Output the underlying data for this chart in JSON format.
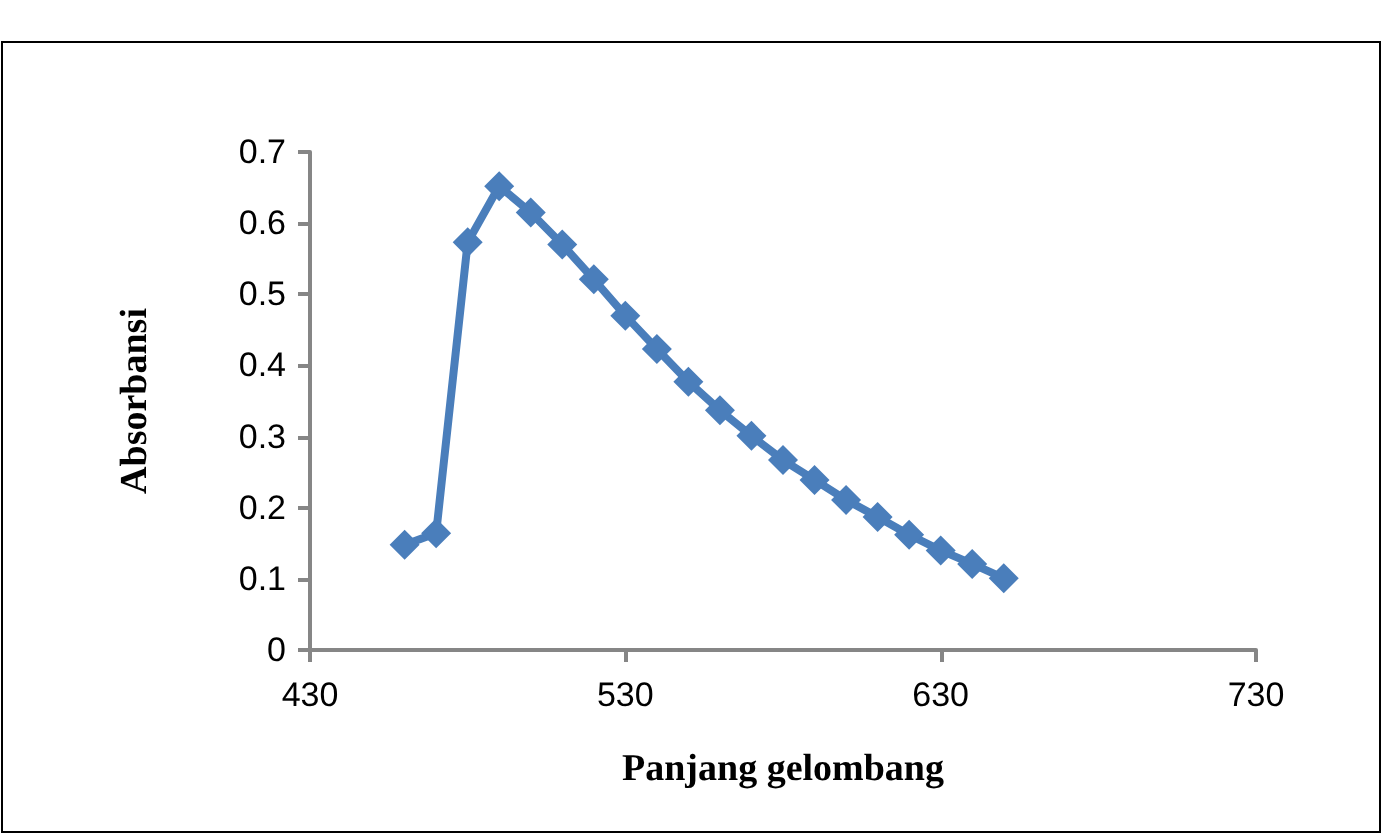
{
  "chart_data": {
    "type": "line",
    "xlabel": "Panjang gelombang",
    "ylabel": "Absorbansi",
    "x": [
      460,
      470,
      480,
      490,
      500,
      510,
      520,
      530,
      540,
      550,
      560,
      570,
      580,
      590,
      600,
      610,
      620,
      630,
      640,
      650
    ],
    "series": [
      {
        "color": "#4a7ebb",
        "values": [
          0.148,
          0.164,
          0.573,
          0.652,
          0.615,
          0.57,
          0.521,
          0.47,
          0.423,
          0.377,
          0.337,
          0.301,
          0.267,
          0.239,
          0.211,
          0.187,
          0.162,
          0.14,
          0.121,
          0.101
        ]
      }
    ],
    "xlim": [
      430,
      730
    ],
    "xticks": [
      430,
      530,
      630,
      730
    ],
    "ylim": [
      0,
      0.7
    ],
    "yticks": [
      0,
      0.1,
      0.2,
      0.3,
      0.4,
      0.5,
      0.6,
      0.7
    ],
    "grid": false,
    "marker": "diamond",
    "line_style": "solid"
  }
}
